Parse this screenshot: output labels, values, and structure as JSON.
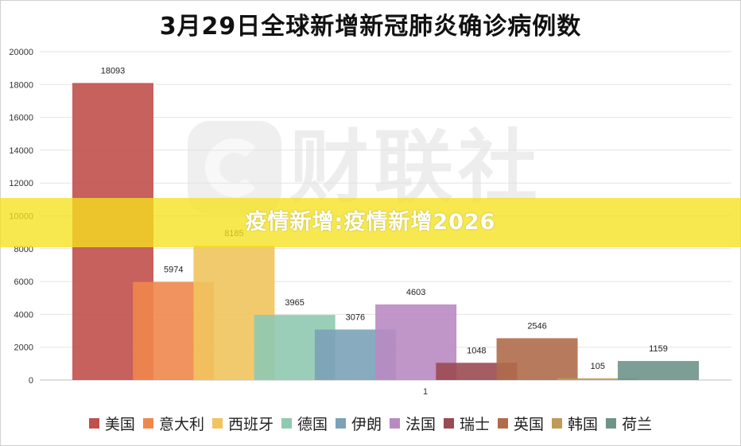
{
  "chart_data": {
    "type": "bar",
    "title": "3月29日全球新增新冠肺炎确诊病例数",
    "categories": [
      "1"
    ],
    "series": [
      {
        "name": "美国",
        "values": [
          18093
        ],
        "color": "#c0504d"
      },
      {
        "name": "意大利",
        "values": [
          5974
        ],
        "color": "#f0874c"
      },
      {
        "name": "西班牙",
        "values": [
          8185
        ],
        "color": "#f1c45e"
      },
      {
        "name": "德国",
        "values": [
          3965
        ],
        "color": "#8fc9b1"
      },
      {
        "name": "伊朗",
        "values": [
          3076
        ],
        "color": "#7ba2b8"
      },
      {
        "name": "法国",
        "values": [
          4603
        ],
        "color": "#b98ac2"
      },
      {
        "name": "瑞士",
        "values": [
          1048
        ],
        "color": "#9b4a52"
      },
      {
        "name": "英国",
        "values": [
          2546
        ],
        "color": "#b06c4a"
      },
      {
        "name": "韩国",
        "values": [
          105
        ],
        "color": "#c09a56"
      },
      {
        "name": "荷兰",
        "values": [
          1159
        ],
        "color": "#6f9388"
      }
    ],
    "y_ticks": [
      "0",
      "2000",
      "4000",
      "6000",
      "8000",
      "10000",
      "12000",
      "14000",
      "16000",
      "18000",
      "20000"
    ],
    "ylim": [
      0,
      20000
    ],
    "grid": true,
    "legend_position": "bottom"
  },
  "watermark": {
    "text": "财联社",
    "icon": "cailianshe-logo-icon"
  },
  "banner": {
    "text": "疫情新增:疫情新增2026",
    "color": "#f5e21e"
  }
}
